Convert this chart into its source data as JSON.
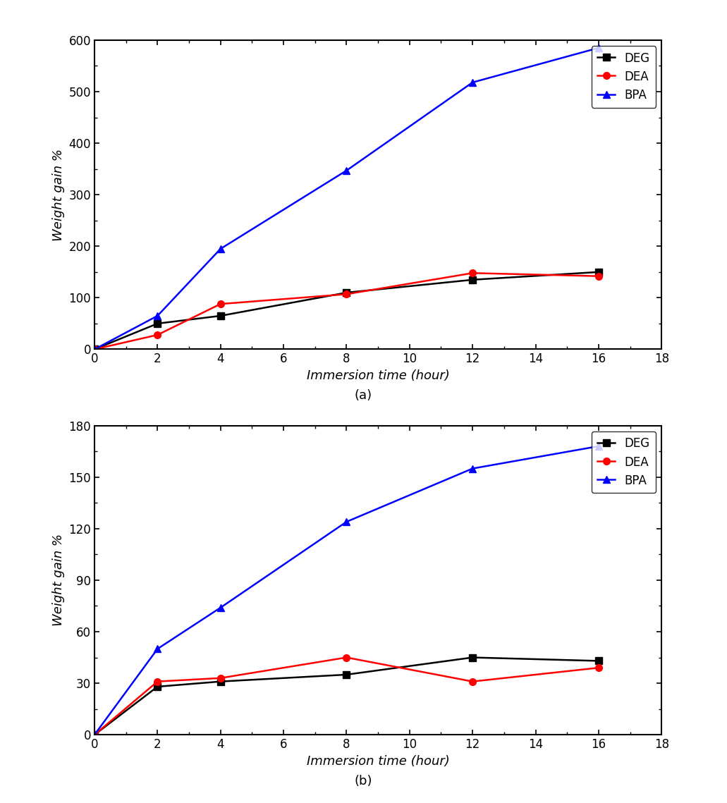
{
  "chart_a": {
    "title": "(a)",
    "x": [
      0,
      2,
      4,
      8,
      12,
      16
    ],
    "DEG": [
      0,
      50,
      65,
      110,
      135,
      150
    ],
    "DEA": [
      0,
      28,
      88,
      107,
      148,
      142
    ],
    "BPA": [
      0,
      65,
      195,
      347,
      518,
      585
    ],
    "ylim": [
      0,
      600
    ],
    "yticks": [
      0,
      100,
      200,
      300,
      400,
      500,
      600
    ],
    "xlim": [
      0,
      18
    ],
    "xticks": [
      0,
      2,
      4,
      6,
      8,
      10,
      12,
      14,
      16,
      18
    ],
    "ylabel": "Weight gain %",
    "xlabel": "Immersion time (hour)"
  },
  "chart_b": {
    "title": "(b)",
    "x": [
      0,
      2,
      4,
      8,
      12,
      16
    ],
    "DEG": [
      0,
      28,
      31,
      35,
      45,
      43
    ],
    "DEA": [
      0,
      31,
      33,
      45,
      31,
      39
    ],
    "BPA": [
      0,
      50,
      74,
      124,
      155,
      168
    ],
    "ylim": [
      0,
      180
    ],
    "yticks": [
      0,
      30,
      60,
      90,
      120,
      150,
      180
    ],
    "xlim": [
      0,
      18
    ],
    "xticks": [
      0,
      2,
      4,
      6,
      8,
      10,
      12,
      14,
      16,
      18
    ],
    "ylabel": "Weight gain %",
    "xlabel": "Immersion time (hour)"
  },
  "colors": {
    "DEG": "#000000",
    "DEA": "#ff0000",
    "BPA": "#0000ff"
  },
  "markers": {
    "DEG": "s",
    "DEA": "o",
    "BPA": "^"
  },
  "legend_labels": [
    "DEG",
    "DEA",
    "BPA"
  ],
  "background_color": "#ffffff",
  "linewidth": 1.8,
  "markersize": 7
}
